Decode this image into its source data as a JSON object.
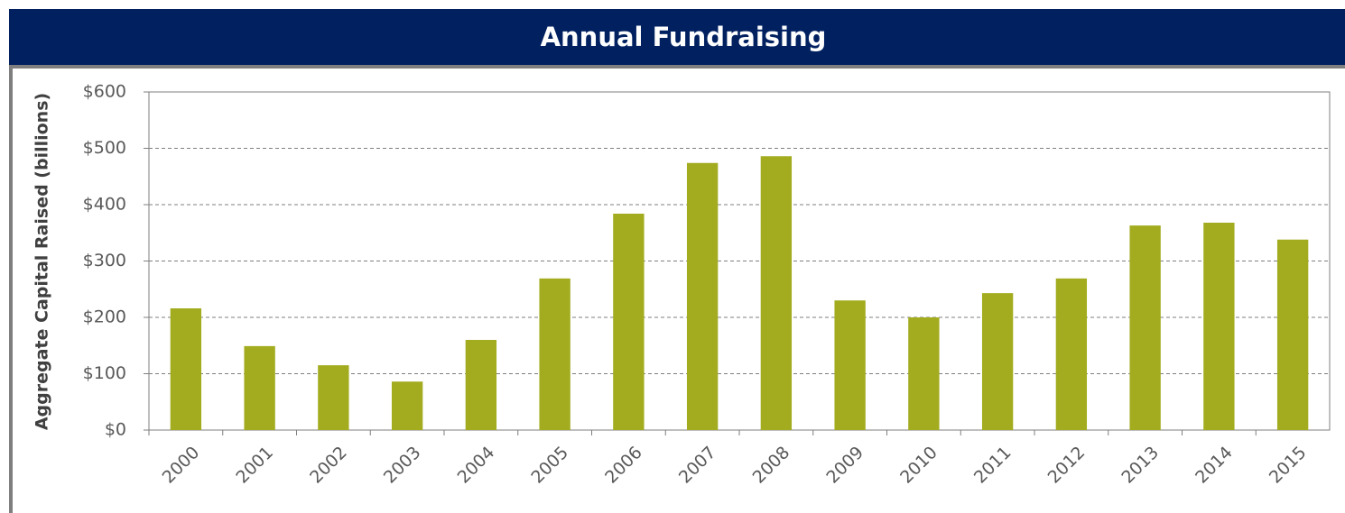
{
  "chart_data": {
    "type": "bar",
    "title": "Annual Fundraising",
    "y_label": "Aggregate Capital Raised (billions)",
    "categories": [
      "2000",
      "2001",
      "2002",
      "2003",
      "2004",
      "2005",
      "2006",
      "2007",
      "2008",
      "2009",
      "2010",
      "2011",
      "2012",
      "2013",
      "2014",
      "2015"
    ],
    "values": [
      216,
      149,
      115,
      86,
      160,
      269,
      384,
      474,
      486,
      230,
      200,
      243,
      269,
      363,
      368,
      338
    ],
    "color": "#a2ac1e",
    "ylim": [
      0,
      600
    ],
    "yticks": [
      {
        "value": 0,
        "label": "$0"
      },
      {
        "value": 100,
        "label": "$100"
      },
      {
        "value": 200,
        "label": "$200"
      },
      {
        "value": 300,
        "label": "$300"
      },
      {
        "value": 400,
        "label": "$400"
      },
      {
        "value": 500,
        "label": "$500"
      },
      {
        "value": 600,
        "label": "$600"
      }
    ],
    "grid": true
  }
}
